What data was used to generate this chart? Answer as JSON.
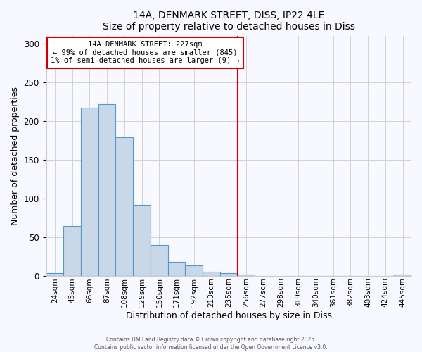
{
  "title": "14A, DENMARK STREET, DISS, IP22 4LE",
  "subtitle": "Size of property relative to detached houses in Diss",
  "xlabel": "Distribution of detached houses by size in Diss",
  "ylabel": "Number of detached properties",
  "bar_labels": [
    "24sqm",
    "45sqm",
    "66sqm",
    "87sqm",
    "108sqm",
    "129sqm",
    "150sqm",
    "171sqm",
    "192sqm",
    "213sqm",
    "235sqm",
    "256sqm",
    "277sqm",
    "298sqm",
    "319sqm",
    "340sqm",
    "361sqm",
    "382sqm",
    "403sqm",
    "424sqm",
    "445sqm"
  ],
  "bar_values": [
    3,
    64,
    217,
    221,
    179,
    91,
    40,
    18,
    13,
    5,
    3,
    1,
    0,
    0,
    0,
    0,
    0,
    0,
    0,
    0,
    1
  ],
  "bar_color": "#c8d8e8",
  "bar_edge_color": "#5599cc",
  "vline_x_index": 10.5,
  "vline_color": "#cc0000",
  "annotation_text": "14A DENMARK STREET: 227sqm\n← 99% of detached houses are smaller (845)\n1% of semi-detached houses are larger (9) →",
  "annotation_box_color": "#ffffff",
  "annotation_box_edge_color": "#cc0000",
  "ylim": [
    0,
    310
  ],
  "yticks": [
    0,
    50,
    100,
    150,
    200,
    250,
    300
  ],
  "footer_line1": "Contains HM Land Registry data © Crown copyright and database right 2025.",
  "footer_line2": "Contains public sector information licensed under the Open Government Licence v3.0.",
  "background_color": "#f8f8ff",
  "grid_color": "#cccccc"
}
